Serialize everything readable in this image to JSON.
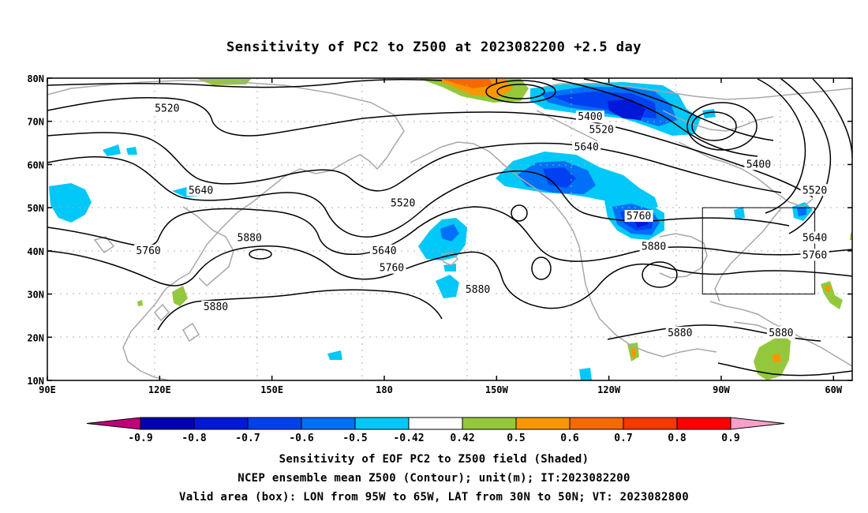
{
  "title": "Sensitivity of PC2 to Z500 at 2023082200 +2.5 day",
  "axes": {
    "lat_ticks": [
      "80N",
      "70N",
      "60N",
      "50N",
      "40N",
      "30N",
      "20N",
      "10N"
    ],
    "lon_ticks": [
      "90E",
      "120E",
      "150E",
      "180",
      "150W",
      "120W",
      "90W",
      "60W"
    ]
  },
  "contour_labels": [
    {
      "text": "5520",
      "lon": 122,
      "lat": 73
    },
    {
      "text": "5400",
      "lon": -125,
      "lat": 71
    },
    {
      "text": "5520",
      "lon": -122,
      "lat": 68
    },
    {
      "text": "5640",
      "lon": -126,
      "lat": 64
    },
    {
      "text": "5400",
      "lon": -80,
      "lat": 60
    },
    {
      "text": "5520",
      "lon": -65,
      "lat": 54
    },
    {
      "text": "5640",
      "lon": 131,
      "lat": 54
    },
    {
      "text": "5520",
      "lon": -175,
      "lat": 51
    },
    {
      "text": "5760",
      "lon": -112,
      "lat": 48
    },
    {
      "text": "5880",
      "lon": 144,
      "lat": 43
    },
    {
      "text": "5880",
      "lon": -108,
      "lat": 41
    },
    {
      "text": "5640",
      "lon": -180,
      "lat": 40
    },
    {
      "text": "5640",
      "lon": -65,
      "lat": 43
    },
    {
      "text": "5760",
      "lon": 117,
      "lat": 40
    },
    {
      "text": "5760",
      "lon": -178,
      "lat": 36
    },
    {
      "text": "5760",
      "lon": -65,
      "lat": 39
    },
    {
      "text": "5880",
      "lon": -155,
      "lat": 31
    },
    {
      "text": "5880",
      "lon": 135,
      "lat": 27
    },
    {
      "text": "5880",
      "lon": -101,
      "lat": 21
    },
    {
      "text": "5880",
      "lon": -74,
      "lat": 21
    }
  ],
  "colorbar": {
    "labels": [
      "-0.9",
      "-0.8",
      "-0.7",
      "-0.6",
      "-0.5",
      "-0.42",
      "0.42",
      "0.5",
      "0.6",
      "0.7",
      "0.8",
      "0.9"
    ],
    "colors": {
      "under": "#c0007a",
      "bins": [
        "#0000b0",
        "#0018d8",
        "#0040f0",
        "#0070f8",
        "#00c8f8",
        "#ffffff",
        "#94c83c",
        "#f89800",
        "#f86800",
        "#f83800",
        "#ff0000"
      ],
      "over": "#f8a0c8"
    }
  },
  "box": {
    "lon_min": -95,
    "lon_max": -65,
    "lat_min": 30,
    "lat_max": 50
  },
  "captions": [
    "Sensitivity of EOF PC2 to Z500 field (Shaded)",
    "NCEP ensemble mean Z500 (Contour); unit(m); IT:2023082200",
    "Valid area (box): LON from 95W to 65W, LAT from 30N to 50N; VT: 2023082800"
  ]
}
